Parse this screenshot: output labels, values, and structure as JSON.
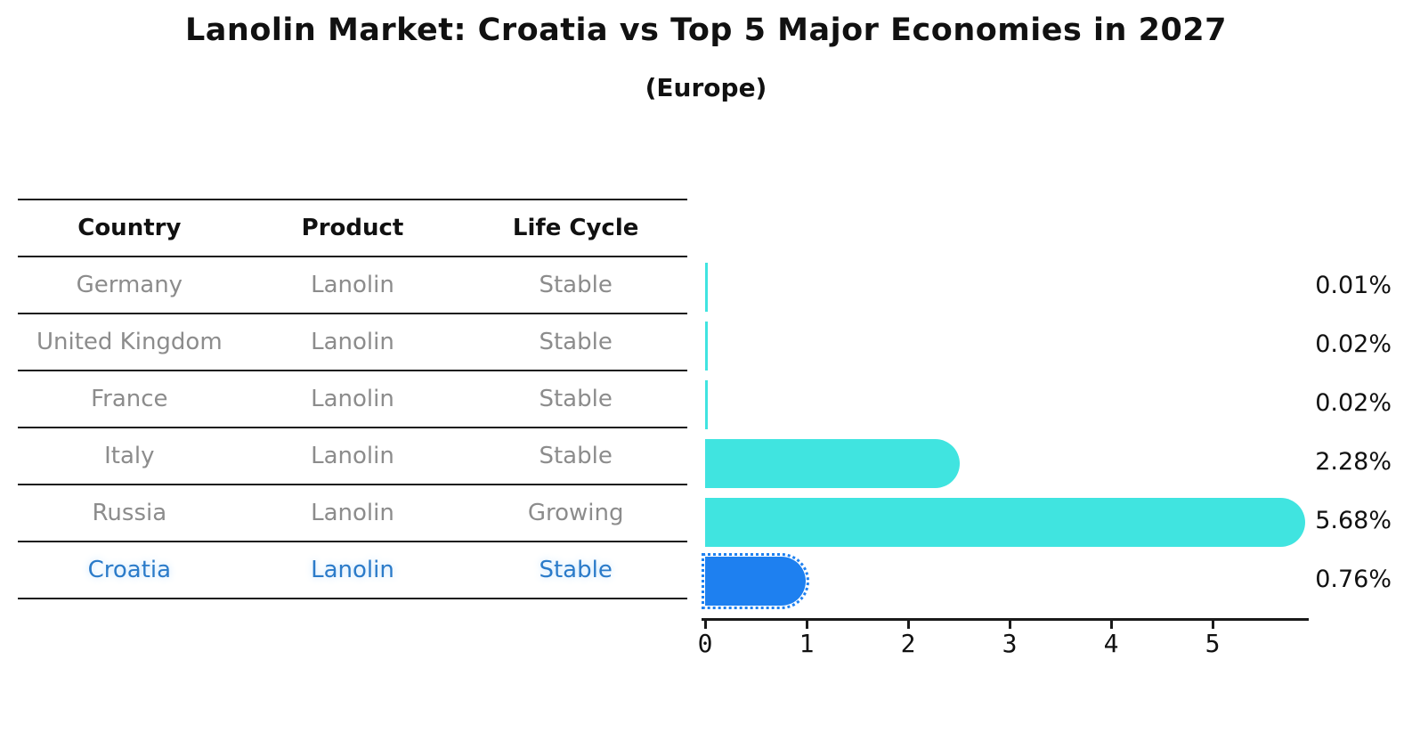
{
  "title": "Lanolin Market: Croatia vs Top 5 Major Economies in 2027",
  "subtitle": "(Europe)",
  "table": {
    "headers": [
      "Country",
      "Product",
      "Life Cycle"
    ],
    "rows": [
      {
        "country": "Germany",
        "product": "Lanolin",
        "life_cycle": "Stable",
        "highlight": false
      },
      {
        "country": "United Kingdom",
        "product": "Lanolin",
        "life_cycle": "Stable",
        "highlight": false
      },
      {
        "country": "France",
        "product": "Lanolin",
        "life_cycle": "Stable",
        "highlight": false
      },
      {
        "country": "Italy",
        "product": "Lanolin",
        "life_cycle": "Stable",
        "highlight": false
      },
      {
        "country": "Russia",
        "product": "Lanolin",
        "life_cycle": "Growing",
        "highlight": false
      },
      {
        "country": "Croatia",
        "product": "Lanolin",
        "life_cycle": "Stable",
        "highlight": true
      }
    ]
  },
  "chart_data": {
    "type": "bar",
    "orientation": "horizontal",
    "title": "Lanolin Market: Croatia vs Top 5 Major Economies in 2027",
    "subtitle": "(Europe)",
    "categories": [
      "Germany",
      "United Kingdom",
      "France",
      "Italy",
      "Russia",
      "Croatia"
    ],
    "values": [
      0.01,
      0.02,
      0.02,
      2.28,
      5.68,
      0.76
    ],
    "value_labels": [
      "0.01%",
      "0.02%",
      "0.02%",
      "2.28%",
      "5.68%",
      "0.76%"
    ],
    "x_ticks": [
      "0",
      "1",
      "2",
      "3",
      "4",
      "5"
    ],
    "xlim": [
      0,
      6
    ],
    "grid": false,
    "legend": false,
    "highlight_index": 5,
    "bar_color_default": "#40E4E0",
    "bar_color_highlight": "#1E80F0",
    "highlight_text_color": "#2b7bc9"
  }
}
